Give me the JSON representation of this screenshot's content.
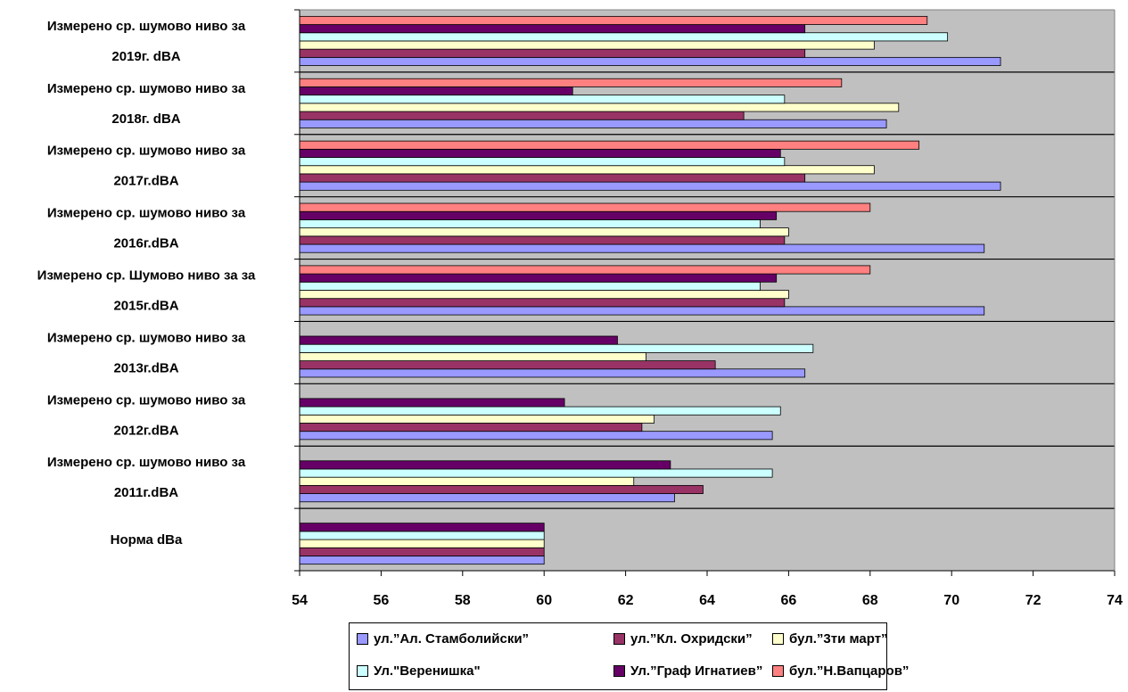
{
  "chart_data": {
    "type": "bar",
    "orientation": "horizontal",
    "categories": [
      "Норма dBa",
      "Измерено ср. шумово ниво за 2011г.dBA",
      "Измерено ср. шумово ниво за 2012г.dBA",
      "Измерено ср. шумово ниво за 2013г.dBA",
      "Измерено ср. Шумово ниво за за 2015г.dBA",
      "Измерено ср. шумово ниво за 2016г.dBA",
      "Измерено ср. шумово ниво за 2017г.dBA",
      "Измерено ср. шумово ниво за 2018г. dBA",
      "Измерено ср. шумово ниво за 2019г. dBA"
    ],
    "category_lines": [
      [
        "Норма dBa"
      ],
      [
        "Измерено ср. шумово ниво за",
        "2011г.dBA"
      ],
      [
        "Измерено ср. шумово ниво за",
        "2012г.dBA"
      ],
      [
        "Измерено ср. шумово ниво за",
        "2013г.dBA"
      ],
      [
        "Измерено ср. Шумово ниво за за",
        "2015г.dBA"
      ],
      [
        "Измерено ср. шумово ниво за",
        "2016г.dBA"
      ],
      [
        "Измерено ср. шумово ниво за",
        "2017г.dBA"
      ],
      [
        "Измерено ср. шумово ниво за",
        "2018г. dBA"
      ],
      [
        "Измерено ср. шумово ниво за",
        "2019г. dBA"
      ]
    ],
    "series": [
      {
        "name": "ул.”Ал. Стамболийски”",
        "color": "#9999ff",
        "values": [
          60,
          63.2,
          65.6,
          66.4,
          70.8,
          70.8,
          71.2,
          68.4,
          71.2
        ]
      },
      {
        "name": "ул.”Кл. Охридски”",
        "color": "#993366",
        "values": [
          60,
          63.9,
          62.4,
          64.2,
          65.9,
          65.9,
          66.4,
          64.9,
          66.4
        ]
      },
      {
        "name": "бул.”3ти март”",
        "color": "#ffffcc",
        "values": [
          60,
          62.2,
          62.7,
          62.5,
          66.0,
          66.0,
          68.1,
          68.7,
          68.1
        ]
      },
      {
        "name": "Ул.\"Веренишка\"",
        "color": "#ccffff",
        "values": [
          60,
          65.6,
          65.8,
          66.6,
          65.3,
          65.3,
          65.9,
          65.9,
          69.9
        ]
      },
      {
        "name": "Ул.”Граф Игнатиев”",
        "color": "#660066",
        "values": [
          60,
          63.1,
          60.5,
          61.8,
          65.7,
          65.7,
          65.8,
          60.7,
          66.4
        ]
      },
      {
        "name": "бул.”Н.Вапцаров”",
        "color": "#ff8080",
        "values": [
          null,
          null,
          null,
          null,
          68.0,
          68.0,
          69.2,
          67.3,
          69.4
        ]
      }
    ],
    "x_ticks": [
      "54",
      "56",
      "58",
      "60",
      "62",
      "64",
      "66",
      "68",
      "70",
      "72",
      "74"
    ],
    "xlim": [
      54,
      74
    ],
    "plot_background": "#c0c0c0",
    "legend_position": "bottom",
    "legend_items": [
      {
        "label": "ул.”Ал. Стамболийски”",
        "color": "#9999ff"
      },
      {
        "label": "ул.”Кл. Охридски”",
        "color": "#993366"
      },
      {
        "label": "бул.”3ти март”",
        "color": "#ffffcc"
      },
      {
        "label": "Ул.\"Веренишка\"",
        "color": "#ccffff"
      },
      {
        "label": "Ул.”Граф Игнатиев”",
        "color": "#660066"
      },
      {
        "label": "бул.”Н.Вапцаров”",
        "color": "#ff8080"
      }
    ]
  }
}
